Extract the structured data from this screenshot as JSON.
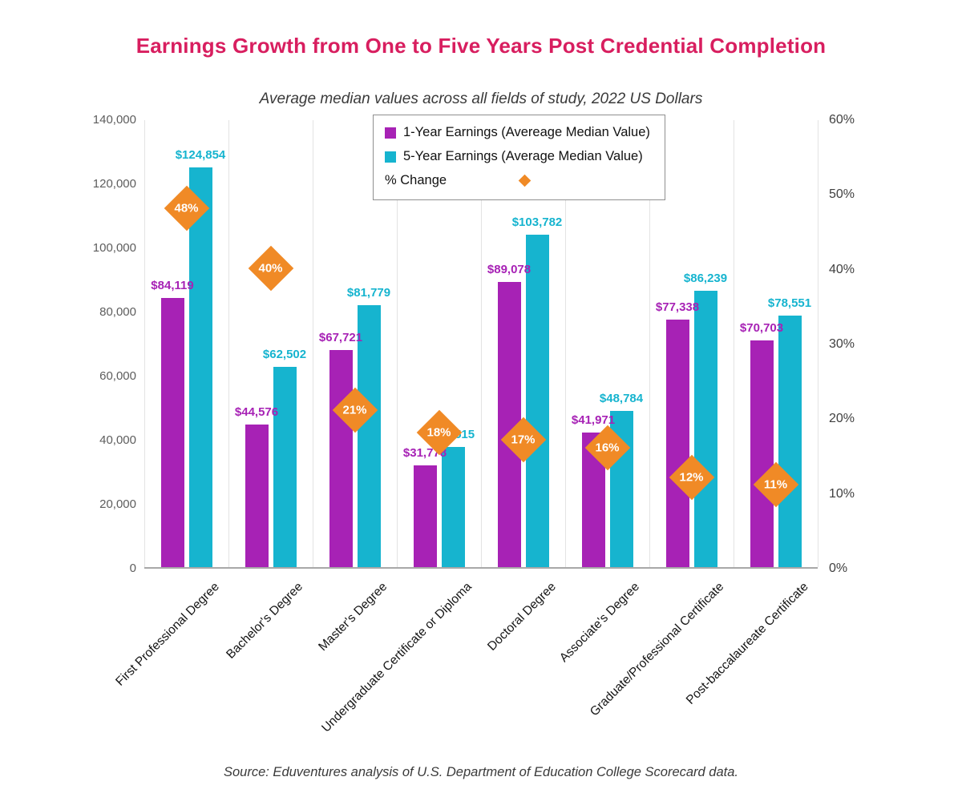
{
  "chart_data": {
    "type": "bar",
    "title": "Earnings Growth from One to Five Years Post Credential Completion",
    "subtitle": "Average median values across all fields of study, 2022 US Dollars",
    "source": "Source: Eduventures analysis of U.S. Department of Education College Scorecard data.",
    "categories": [
      "First Professional Degree",
      "Bachelor's Degree",
      "Master's Degree",
      "Undergraduate Certificate or Diploma",
      "Doctoral Degree",
      "Associate's Degree",
      "Graduate/Professional Certificate",
      "Post-baccalaureate Certificate"
    ],
    "series": [
      {
        "name": "1-Year Earnings (Avereage Median Value)",
        "marker": "square",
        "color": "#a722b5",
        "values": [
          84119,
          44576,
          67721,
          31778,
          89078,
          41971,
          77338,
          70703
        ]
      },
      {
        "name": "5-Year Earnings (Average Median Value)",
        "marker": "square",
        "color": "#16b4cf",
        "values": [
          124854,
          62502,
          81779,
          37515,
          103782,
          48784,
          86239,
          78551
        ]
      },
      {
        "name": "% Change",
        "marker": "diamond",
        "color": "#f08a26",
        "values": [
          48,
          40,
          21,
          18,
          17,
          16,
          12,
          11
        ]
      }
    ],
    "left_axis": {
      "min": 0,
      "max": 140000,
      "step": 20000
    },
    "right_axis": {
      "min": 0,
      "max": 60,
      "step": 10,
      "suffix": "%"
    },
    "legend_position": "top-center",
    "grid": "vertical",
    "title_color": "#d81e5f"
  }
}
